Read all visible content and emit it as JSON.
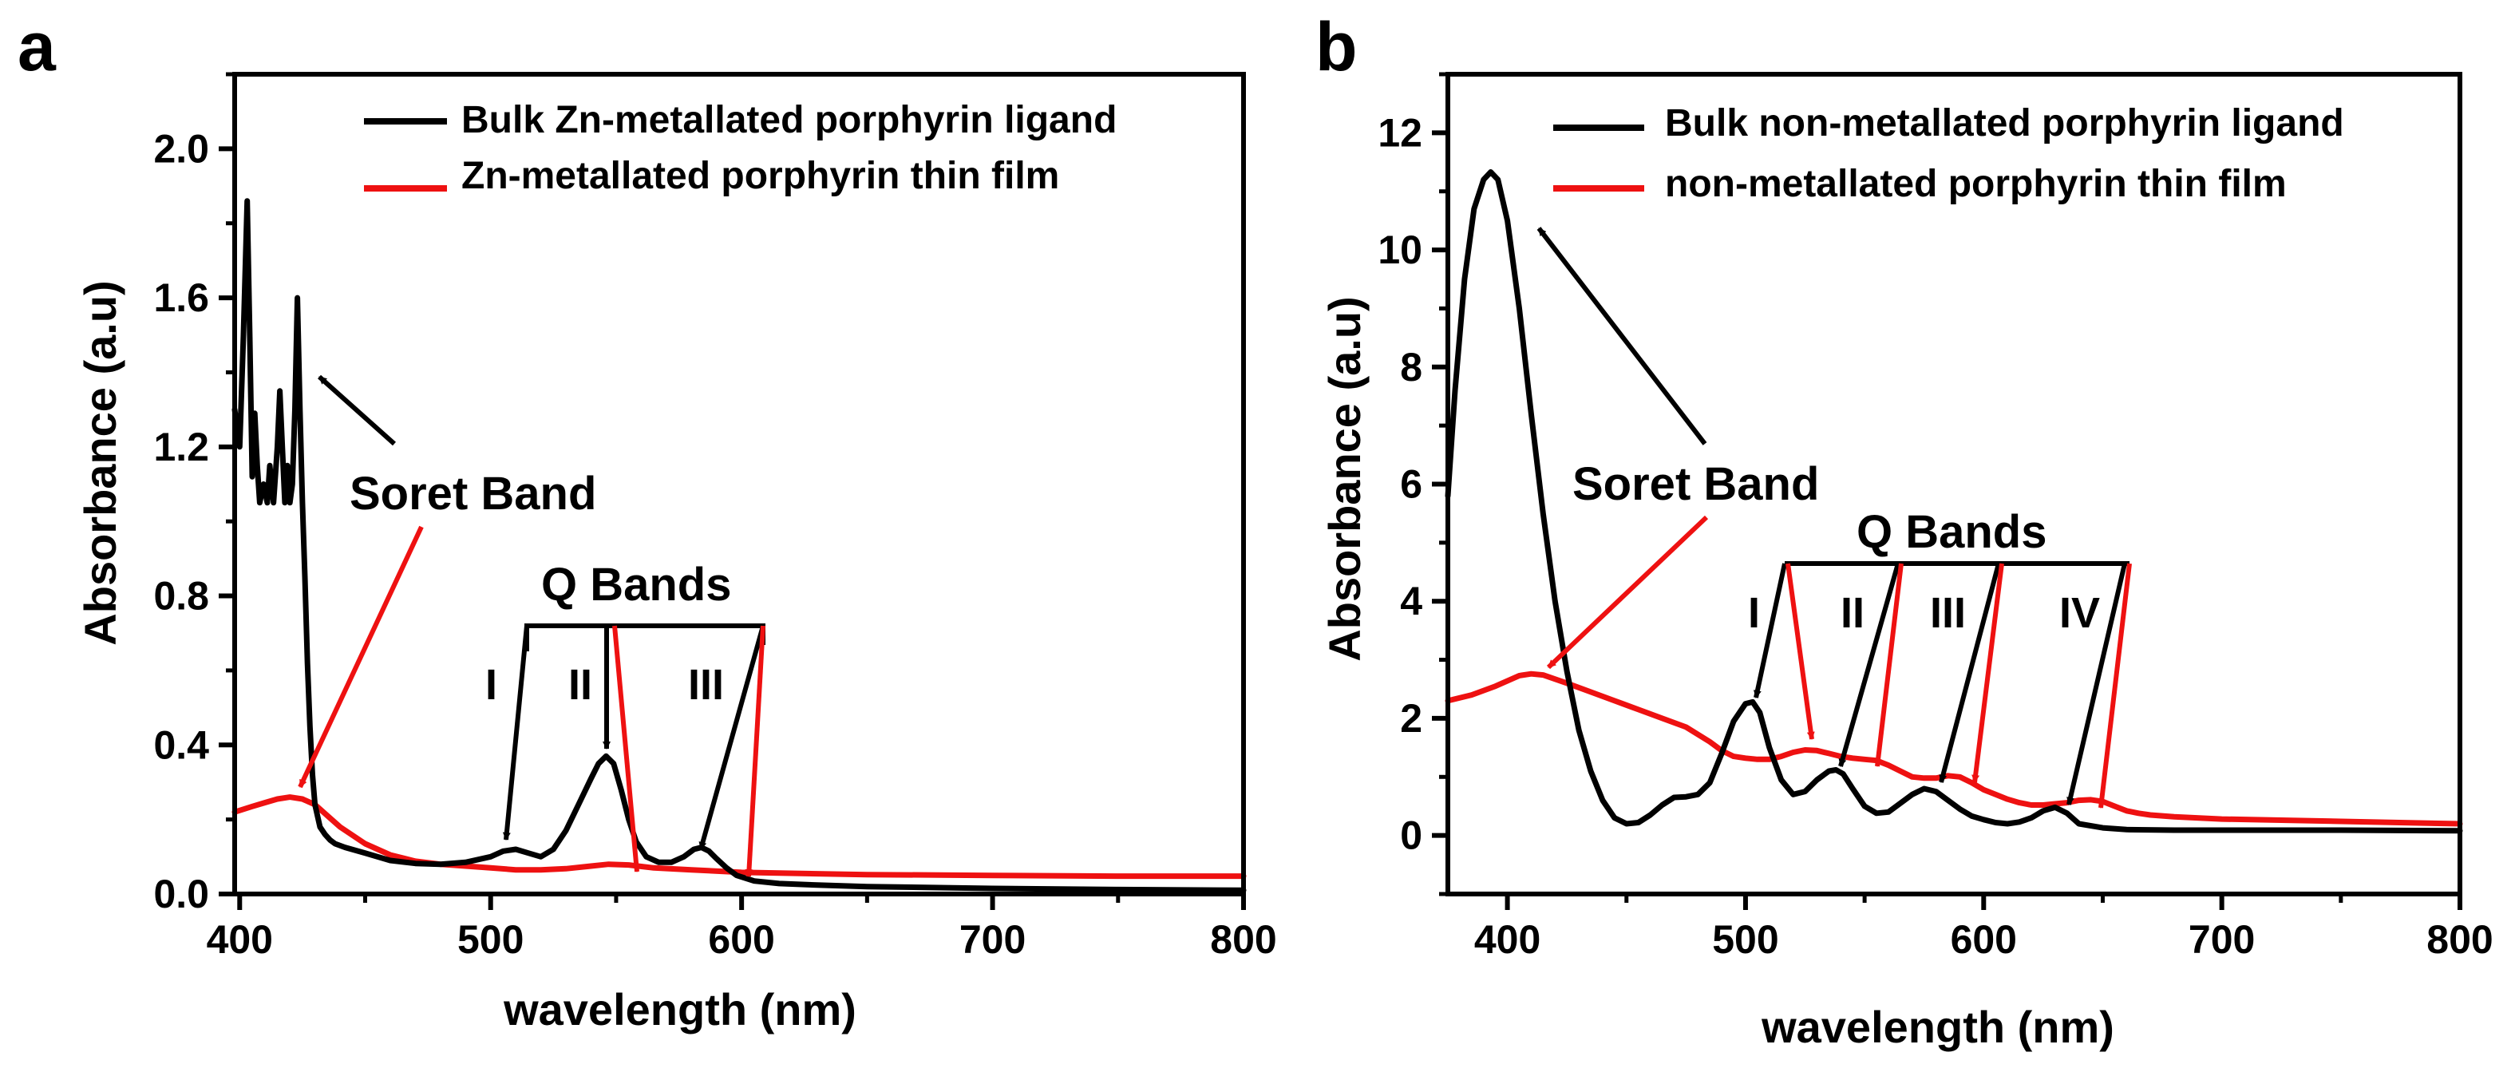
{
  "figure": {
    "panels": [
      {
        "letter": "a",
        "legend": [
          "Bulk Zn-metallated porphyrin ligand",
          "Zn-metallated porphyrin thin film"
        ]
      },
      {
        "letter": "b",
        "legend": [
          "Bulk non-metallated porphyrin ligand",
          "non-metallated porphyrin thin film"
        ]
      }
    ]
  },
  "colors": {
    "bulk": "#000000",
    "film": "#ee1111",
    "axis": "#000000"
  },
  "chart_data": [
    {
      "panel": "a",
      "type": "line",
      "title": "",
      "xlabel": "wavelength (nm)",
      "ylabel": "Absorbance (a.u)",
      "xlim": [
        398,
        800
      ],
      "ylim": [
        0,
        2.2
      ],
      "xticks": [
        400,
        500,
        600,
        700,
        800
      ],
      "yticks": [
        0.0,
        0.4,
        0.8,
        1.2,
        1.6,
        2.0
      ],
      "ytick_labels": [
        "0.0",
        "0.4",
        "0.8",
        "1.2",
        "1.6",
        "2.0"
      ],
      "grid": false,
      "legend_position": "top-right",
      "series": [
        {
          "name": "Bulk Zn-metallated porphyrin ligand",
          "color": "#000000",
          "x": [
            398,
            400,
            401.5,
            403,
            404,
            405,
            406,
            407,
            408,
            409.5,
            411,
            412,
            413.5,
            415,
            416,
            417,
            418,
            419,
            420,
            421,
            422,
            423,
            424,
            425,
            426,
            427,
            428,
            429,
            430,
            432,
            434,
            436,
            438,
            442,
            450,
            460,
            470,
            480,
            490,
            500,
            505,
            510,
            515,
            520,
            525,
            530,
            535,
            540,
            543,
            546,
            549,
            552,
            555,
            558,
            562,
            567,
            572,
            577,
            581,
            584,
            587,
            590,
            594,
            598,
            605,
            615,
            630,
            650,
            700,
            750,
            800
          ],
          "y": [
            1.3,
            1.2,
            1.5,
            1.86,
            1.5,
            1.12,
            1.29,
            1.15,
            1.05,
            1.1,
            1.05,
            1.15,
            1.05,
            1.2,
            1.35,
            1.2,
            1.05,
            1.15,
            1.05,
            1.1,
            1.3,
            1.6,
            1.3,
            1.05,
            0.85,
            0.62,
            0.45,
            0.32,
            0.24,
            0.18,
            0.16,
            0.145,
            0.135,
            0.125,
            0.11,
            0.09,
            0.082,
            0.08,
            0.085,
            0.1,
            0.115,
            0.12,
            0.11,
            0.1,
            0.12,
            0.17,
            0.24,
            0.31,
            0.35,
            0.37,
            0.35,
            0.28,
            0.2,
            0.14,
            0.1,
            0.085,
            0.085,
            0.1,
            0.12,
            0.125,
            0.115,
            0.095,
            0.07,
            0.05,
            0.035,
            0.028,
            0.024,
            0.02,
            0.015,
            0.012,
            0.01
          ]
        },
        {
          "name": "Zn-metallated porphyrin thin film",
          "color": "#ee1111",
          "x": [
            398,
            405,
            410,
            415,
            420,
            425,
            430,
            435,
            440,
            450,
            460,
            470,
            480,
            490,
            500,
            510,
            520,
            530,
            540,
            547,
            555,
            565,
            580,
            600,
            650,
            700,
            750,
            800
          ],
          "y": [
            0.22,
            0.235,
            0.245,
            0.255,
            0.26,
            0.255,
            0.24,
            0.21,
            0.18,
            0.135,
            0.105,
            0.088,
            0.08,
            0.075,
            0.07,
            0.065,
            0.065,
            0.068,
            0.075,
            0.08,
            0.078,
            0.07,
            0.065,
            0.058,
            0.052,
            0.05,
            0.048,
            0.048
          ]
        }
      ],
      "annotations": [
        {
          "text": "Soret Band",
          "kind": "label"
        },
        {
          "text": "Q Bands",
          "kind": "label"
        },
        {
          "text": "I",
          "kind": "band"
        },
        {
          "text": "II",
          "kind": "band"
        },
        {
          "text": "III",
          "kind": "band"
        }
      ]
    },
    {
      "panel": "b",
      "type": "line",
      "title": "",
      "xlabel": "wavelength (nm)",
      "ylabel": "Absorbance (a.u)",
      "xlim": [
        375,
        800
      ],
      "ylim": [
        -1,
        13
      ],
      "xticks": [
        400,
        500,
        600,
        700,
        800
      ],
      "yticks": [
        0,
        2,
        4,
        6,
        8,
        10,
        12
      ],
      "ytick_labels": [
        "0",
        "2",
        "4",
        "6",
        "8",
        "10",
        "12"
      ],
      "grid": false,
      "legend_position": "top-right",
      "series": [
        {
          "name": "Bulk non-metallated porphyrin ligand",
          "color": "#000000",
          "x": [
            375,
            378,
            382,
            386,
            390,
            393,
            396,
            400,
            405,
            410,
            415,
            420,
            425,
            430,
            435,
            440,
            445,
            450,
            455,
            460,
            465,
            470,
            475,
            480,
            485,
            490,
            495,
            500,
            503,
            506,
            510,
            515,
            520,
            525,
            530,
            535,
            538,
            541,
            545,
            550,
            555,
            560,
            565,
            570,
            575,
            580,
            585,
            590,
            595,
            600,
            605,
            610,
            615,
            620,
            625,
            630,
            635,
            640,
            650,
            660,
            680,
            700,
            750,
            800
          ],
          "y": [
            5.8,
            7.6,
            9.5,
            10.7,
            11.2,
            11.33,
            11.2,
            10.5,
            9.0,
            7.2,
            5.5,
            4.0,
            2.8,
            1.8,
            1.1,
            0.6,
            0.3,
            0.2,
            0.22,
            0.35,
            0.52,
            0.65,
            0.66,
            0.7,
            0.9,
            1.4,
            1.95,
            2.25,
            2.28,
            2.1,
            1.5,
            0.95,
            0.7,
            0.75,
            0.95,
            1.1,
            1.12,
            1.05,
            0.8,
            0.5,
            0.38,
            0.4,
            0.55,
            0.7,
            0.8,
            0.75,
            0.6,
            0.45,
            0.33,
            0.27,
            0.22,
            0.2,
            0.23,
            0.3,
            0.42,
            0.48,
            0.38,
            0.2,
            0.13,
            0.1,
            0.09,
            0.09,
            0.09,
            0.08
          ]
        },
        {
          "name": "non-metallated porphyrin thin film",
          "color": "#ee1111",
          "x": [
            375,
            385,
            395,
            405,
            410,
            415,
            425,
            435,
            445,
            455,
            465,
            475,
            485,
            490,
            495,
            500,
            505,
            510,
            515,
            520,
            525,
            530,
            535,
            540,
            545,
            550,
            555,
            560,
            565,
            570,
            575,
            580,
            585,
            590,
            595,
            600,
            605,
            610,
            615,
            620,
            625,
            630,
            635,
            640,
            645,
            650,
            655,
            660,
            665,
            670,
            680,
            700,
            750,
            800
          ],
          "y": [
            2.3,
            2.4,
            2.55,
            2.73,
            2.76,
            2.74,
            2.6,
            2.45,
            2.3,
            2.15,
            2.0,
            1.85,
            1.6,
            1.45,
            1.35,
            1.32,
            1.3,
            1.3,
            1.35,
            1.42,
            1.46,
            1.45,
            1.4,
            1.35,
            1.32,
            1.3,
            1.28,
            1.2,
            1.1,
            1.0,
            0.98,
            0.98,
            1.02,
            1.0,
            0.9,
            0.78,
            0.7,
            0.62,
            0.56,
            0.52,
            0.52,
            0.54,
            0.56,
            0.6,
            0.61,
            0.58,
            0.5,
            0.42,
            0.38,
            0.35,
            0.32,
            0.28,
            0.24,
            0.2
          ]
        }
      ],
      "annotations": [
        {
          "text": "Soret Band",
          "kind": "label"
        },
        {
          "text": "Q Bands",
          "kind": "label"
        },
        {
          "text": "I",
          "kind": "band"
        },
        {
          "text": "II",
          "kind": "band"
        },
        {
          "text": "III",
          "kind": "band"
        },
        {
          "text": "IV",
          "kind": "band"
        }
      ]
    }
  ]
}
